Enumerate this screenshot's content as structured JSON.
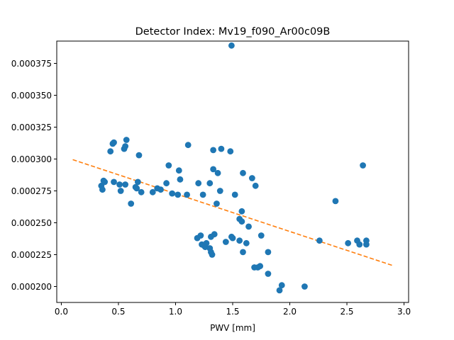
{
  "chart_data": {
    "type": "scatter",
    "title": "Detector Index: Mv19_f090_Ar00c09B",
    "xlabel": "PWV [mm]",
    "ylabel": "",
    "xlim": [
      -0.04,
      3.04
    ],
    "ylim": [
      0.0001875,
      0.0003925
    ],
    "xticks": [
      0.0,
      0.5,
      1.0,
      1.5,
      2.0,
      2.5,
      3.0
    ],
    "xtick_labels": [
      "0.0",
      "0.5",
      "1.0",
      "1.5",
      "2.0",
      "2.5",
      "3.0"
    ],
    "yticks": [
      0.0002,
      0.000225,
      0.00025,
      0.000275,
      0.0003,
      0.000325,
      0.00035,
      0.000375
    ],
    "ytick_labels": [
      "0.000200",
      "0.000225",
      "0.000250",
      "0.000275",
      "0.000300",
      "0.000325",
      "0.000350",
      "0.000375"
    ],
    "grid": false,
    "colors": {
      "points": "#1f77b4",
      "fit": "#ff7f0e",
      "axes": "#000000"
    },
    "series": [
      {
        "name": "data",
        "kind": "scatter",
        "x": [
          0.35,
          0.36,
          0.37,
          0.38,
          0.43,
          0.45,
          0.46,
          0.46,
          0.51,
          0.52,
          0.55,
          0.56,
          0.56,
          0.57,
          0.61,
          0.65,
          0.66,
          0.67,
          0.68,
          0.7,
          0.8,
          0.84,
          0.87,
          0.92,
          0.94,
          0.97,
          1.02,
          1.03,
          1.04,
          1.1,
          1.11,
          1.19,
          1.2,
          1.22,
          1.23,
          1.24,
          1.25,
          1.26,
          1.27,
          1.3,
          1.3,
          1.31,
          1.31,
          1.32,
          1.33,
          1.33,
          1.34,
          1.36,
          1.37,
          1.39,
          1.4,
          1.44,
          1.48,
          1.49,
          1.49,
          1.5,
          1.52,
          1.56,
          1.56,
          1.58,
          1.58,
          1.59,
          1.59,
          1.62,
          1.64,
          1.67,
          1.69,
          1.7,
          1.72,
          1.74,
          1.75,
          1.81,
          1.81,
          1.91,
          1.93,
          2.13,
          2.26,
          2.4,
          2.51,
          2.59,
          2.61,
          2.64,
          2.67,
          2.67
        ],
        "y": [
          0.000279,
          0.000276,
          0.000283,
          0.000282,
          0.000306,
          0.000312,
          0.000282,
          0.000313,
          0.00028,
          0.000275,
          0.000308,
          0.00031,
          0.00028,
          0.000315,
          0.000265,
          0.000278,
          0.000277,
          0.000282,
          0.000303,
          0.000274,
          0.000274,
          0.000277,
          0.000276,
          0.000281,
          0.000295,
          0.000273,
          0.000272,
          0.000291,
          0.000284,
          0.000272,
          0.000311,
          0.000238,
          0.000281,
          0.00024,
          0.000233,
          0.000272,
          0.000232,
          0.000231,
          0.000234,
          0.00023,
          0.000281,
          0.000227,
          0.000239,
          0.000225,
          0.000292,
          0.000307,
          0.000241,
          0.000265,
          0.000289,
          0.000275,
          0.000308,
          0.000235,
          0.000306,
          0.000239,
          0.000389,
          0.000238,
          0.000272,
          0.000253,
          0.000236,
          0.000251,
          0.000259,
          0.000289,
          0.000227,
          0.000234,
          0.000247,
          0.000285,
          0.000215,
          0.000279,
          0.000215,
          0.000216,
          0.00024,
          0.000227,
          0.00021,
          0.000197,
          0.000201,
          0.0002,
          0.000236,
          0.000267,
          0.000234,
          0.000236,
          0.000233,
          0.000295,
          0.000236,
          0.000233
        ]
      },
      {
        "name": "fit",
        "kind": "line",
        "style": "dashed",
        "x": [
          0.1,
          2.9
        ],
        "y": [
          0.0002995,
          0.0002165
        ]
      }
    ]
  }
}
